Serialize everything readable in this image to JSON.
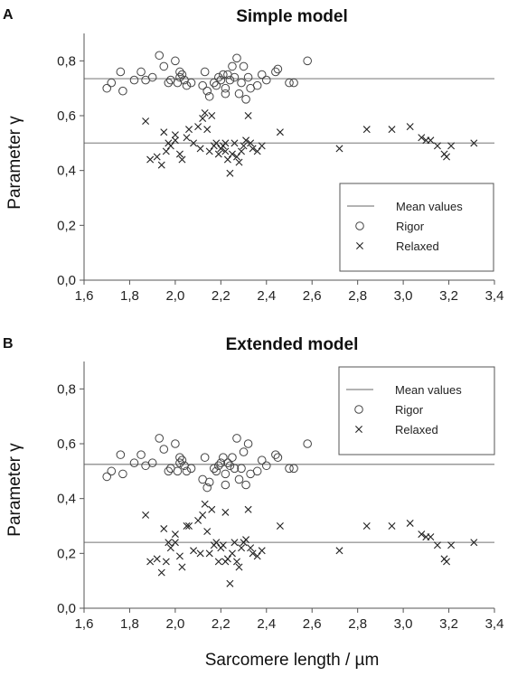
{
  "figure": {
    "xlabel": "Sarcomere length / µm"
  },
  "chart_data": [
    {
      "panel": "A",
      "type": "scatter",
      "title": "Simple model",
      "xlabel": "Sarcomere length / µm",
      "ylabel": "Parameter γ",
      "xlim": [
        1.6,
        3.4
      ],
      "ylim": [
        0.0,
        0.9
      ],
      "x_ticks": [
        "1,6",
        "1,8",
        "2,0",
        "2,2",
        "2,4",
        "2,6",
        "2,8",
        "3,0",
        "3,2",
        "3,4"
      ],
      "y_ticks": [
        "0,0",
        "0,2",
        "0,4",
        "0,6",
        "0,8"
      ],
      "grid": false,
      "legend": {
        "placement": "bottom-right",
        "entries": [
          "Mean values",
          "Rigor",
          "Relaxed"
        ]
      },
      "mean_lines": [
        {
          "name": "Rigor",
          "y": 0.735
        },
        {
          "name": "Relaxed",
          "y": 0.5
        }
      ],
      "series": [
        {
          "name": "Rigor",
          "marker": "circle",
          "x": [
            1.7,
            1.72,
            1.76,
            1.77,
            1.82,
            1.85,
            1.87,
            1.9,
            1.93,
            1.95,
            1.97,
            1.98,
            2.0,
            2.01,
            2.02,
            2.02,
            2.03,
            2.04,
            2.05,
            2.07,
            2.12,
            2.13,
            2.14,
            2.15,
            2.17,
            2.18,
            2.19,
            2.2,
            2.21,
            2.22,
            2.22,
            2.23,
            2.24,
            2.25,
            2.26,
            2.27,
            2.28,
            2.29,
            2.3,
            2.31,
            2.32,
            2.33,
            2.36,
            2.38,
            2.4,
            2.44,
            2.45,
            2.5,
            2.52,
            2.58
          ],
          "y": [
            0.7,
            0.72,
            0.76,
            0.69,
            0.73,
            0.76,
            0.73,
            0.74,
            0.82,
            0.78,
            0.72,
            0.73,
            0.8,
            0.72,
            0.76,
            0.74,
            0.75,
            0.73,
            0.71,
            0.72,
            0.71,
            0.76,
            0.69,
            0.67,
            0.72,
            0.71,
            0.74,
            0.73,
            0.75,
            0.7,
            0.68,
            0.75,
            0.73,
            0.78,
            0.74,
            0.81,
            0.68,
            0.72,
            0.78,
            0.66,
            0.74,
            0.7,
            0.71,
            0.75,
            0.73,
            0.76,
            0.77,
            0.72,
            0.72,
            0.8
          ]
        },
        {
          "name": "Relaxed",
          "marker": "x",
          "x": [
            1.87,
            1.89,
            1.92,
            1.94,
            1.95,
            1.96,
            1.97,
            1.98,
            2.0,
            2.0,
            2.02,
            2.03,
            2.05,
            2.06,
            2.08,
            2.1,
            2.11,
            2.12,
            2.13,
            2.14,
            2.15,
            2.16,
            2.17,
            2.18,
            2.19,
            2.2,
            2.21,
            2.22,
            2.22,
            2.23,
            2.24,
            2.25,
            2.26,
            2.27,
            2.28,
            2.29,
            2.3,
            2.31,
            2.32,
            2.33,
            2.34,
            2.36,
            2.38,
            2.46,
            2.72,
            2.84,
            2.95,
            3.03,
            3.08,
            3.1,
            3.12,
            3.15,
            3.18,
            3.19,
            3.21,
            3.31
          ],
          "y": [
            0.58,
            0.44,
            0.45,
            0.42,
            0.54,
            0.47,
            0.5,
            0.49,
            0.51,
            0.53,
            0.46,
            0.44,
            0.52,
            0.55,
            0.5,
            0.56,
            0.48,
            0.59,
            0.61,
            0.55,
            0.47,
            0.6,
            0.49,
            0.5,
            0.46,
            0.48,
            0.49,
            0.5,
            0.47,
            0.44,
            0.39,
            0.46,
            0.5,
            0.45,
            0.43,
            0.47,
            0.49,
            0.51,
            0.6,
            0.5,
            0.48,
            0.47,
            0.49,
            0.54,
            0.48,
            0.55,
            0.55,
            0.56,
            0.52,
            0.51,
            0.51,
            0.49,
            0.46,
            0.45,
            0.49,
            0.5
          ]
        }
      ]
    },
    {
      "panel": "B",
      "type": "scatter",
      "title": "Extended model",
      "xlabel": "Sarcomere length / µm",
      "ylabel": "Parameter γ",
      "xlim": [
        1.6,
        3.4
      ],
      "ylim": [
        0.0,
        0.9
      ],
      "x_ticks": [
        "1,6",
        "1,8",
        "2,0",
        "2,2",
        "2,4",
        "2,6",
        "2,8",
        "3,0",
        "3,2",
        "3,4"
      ],
      "y_ticks": [
        "0,0",
        "0,2",
        "0,4",
        "0,6",
        "0,8"
      ],
      "grid": false,
      "legend": {
        "placement": "top-right",
        "entries": [
          "Mean values",
          "Rigor",
          "Relaxed"
        ]
      },
      "mean_lines": [
        {
          "name": "Rigor",
          "y": 0.525
        },
        {
          "name": "Relaxed",
          "y": 0.24
        }
      ],
      "series": [
        {
          "name": "Rigor",
          "marker": "circle",
          "x": [
            1.7,
            1.72,
            1.76,
            1.77,
            1.82,
            1.85,
            1.87,
            1.9,
            1.93,
            1.95,
            1.97,
            1.98,
            2.0,
            2.01,
            2.02,
            2.02,
            2.03,
            2.04,
            2.05,
            2.07,
            2.12,
            2.13,
            2.14,
            2.15,
            2.17,
            2.18,
            2.19,
            2.2,
            2.21,
            2.22,
            2.22,
            2.23,
            2.24,
            2.25,
            2.26,
            2.27,
            2.28,
            2.29,
            2.3,
            2.31,
            2.32,
            2.33,
            2.36,
            2.38,
            2.4,
            2.44,
            2.45,
            2.5,
            2.52,
            2.58
          ],
          "y": [
            0.48,
            0.5,
            0.56,
            0.49,
            0.53,
            0.56,
            0.52,
            0.53,
            0.62,
            0.58,
            0.5,
            0.51,
            0.6,
            0.5,
            0.55,
            0.53,
            0.54,
            0.52,
            0.5,
            0.51,
            0.47,
            0.55,
            0.44,
            0.46,
            0.51,
            0.5,
            0.52,
            0.53,
            0.55,
            0.49,
            0.45,
            0.53,
            0.52,
            0.55,
            0.51,
            0.62,
            0.47,
            0.51,
            0.57,
            0.45,
            0.6,
            0.49,
            0.5,
            0.54,
            0.52,
            0.56,
            0.55,
            0.51,
            0.51,
            0.6
          ]
        },
        {
          "name": "Relaxed",
          "marker": "x",
          "x": [
            1.87,
            1.89,
            1.92,
            1.94,
            1.95,
            1.96,
            1.97,
            1.98,
            2.0,
            2.0,
            2.02,
            2.03,
            2.05,
            2.06,
            2.08,
            2.1,
            2.11,
            2.12,
            2.13,
            2.14,
            2.15,
            2.16,
            2.17,
            2.18,
            2.19,
            2.2,
            2.21,
            2.22,
            2.22,
            2.23,
            2.24,
            2.25,
            2.26,
            2.27,
            2.28,
            2.29,
            2.3,
            2.31,
            2.32,
            2.33,
            2.34,
            2.36,
            2.38,
            2.46,
            2.72,
            2.84,
            2.95,
            3.03,
            3.08,
            3.1,
            3.12,
            3.15,
            3.18,
            3.19,
            3.21,
            3.31
          ],
          "y": [
            0.34,
            0.17,
            0.18,
            0.13,
            0.29,
            0.17,
            0.24,
            0.22,
            0.27,
            0.24,
            0.19,
            0.15,
            0.3,
            0.3,
            0.21,
            0.32,
            0.2,
            0.34,
            0.38,
            0.28,
            0.2,
            0.36,
            0.23,
            0.24,
            0.17,
            0.22,
            0.23,
            0.35,
            0.17,
            0.18,
            0.09,
            0.2,
            0.24,
            0.17,
            0.15,
            0.22,
            0.24,
            0.25,
            0.36,
            0.22,
            0.2,
            0.19,
            0.21,
            0.3,
            0.21,
            0.3,
            0.3,
            0.31,
            0.27,
            0.26,
            0.26,
            0.23,
            0.18,
            0.17,
            0.23,
            0.24
          ]
        }
      ]
    }
  ]
}
